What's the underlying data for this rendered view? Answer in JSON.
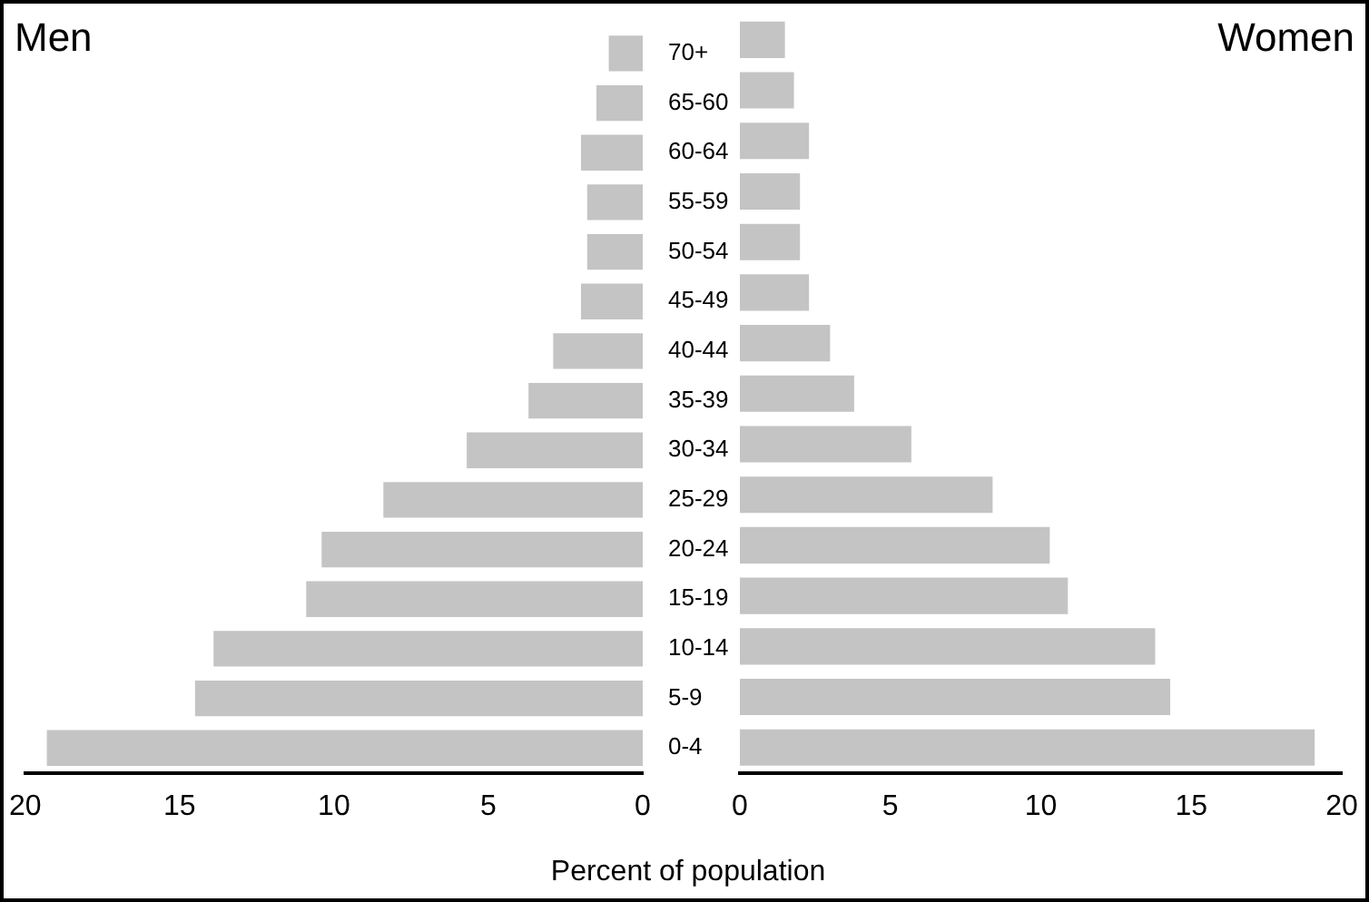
{
  "chart_data": [
    {
      "type": "bar",
      "orientation": "horizontal",
      "xlabel": "Percent of population",
      "categories": [
        "70+",
        "65-60",
        "60-64",
        "55-59",
        "50-54",
        "45-49",
        "40-44",
        "35-39",
        "30-34",
        "25-29",
        "20-24",
        "15-19",
        "10-14",
        "5-9",
        "0-4"
      ],
      "series": [
        {
          "name": "Men",
          "color": "#c4c4c4",
          "values": [
            1.1,
            1.5,
            2.0,
            1.8,
            1.8,
            2.0,
            2.9,
            3.7,
            5.7,
            8.4,
            10.4,
            10.9,
            13.9,
            14.5,
            19.3
          ]
        }
      ],
      "xlim": [
        20,
        0
      ],
      "xticks": [
        20,
        15,
        10,
        5,
        0
      ],
      "grid": false,
      "legend": false
    },
    {
      "type": "bar",
      "orientation": "horizontal",
      "categories": [
        null,
        null,
        null,
        null,
        null,
        null,
        null,
        null,
        null,
        null,
        null,
        null,
        null,
        null,
        null
      ],
      "series": [
        {
          "name": "Women",
          "color": "#c4c4c4",
          "values": [
            1.5,
            1.8,
            2.3,
            2.0,
            2.0,
            2.3,
            3.0,
            3.8,
            5.7,
            8.4,
            10.3,
            10.9,
            13.8,
            14.3,
            19.1
          ]
        }
      ],
      "xlim": [
        0,
        20
      ],
      "xticks": [
        0,
        5,
        10,
        15,
        20
      ],
      "grid": false,
      "legend": false,
      "tick_labels": "x"
    }
  ]
}
